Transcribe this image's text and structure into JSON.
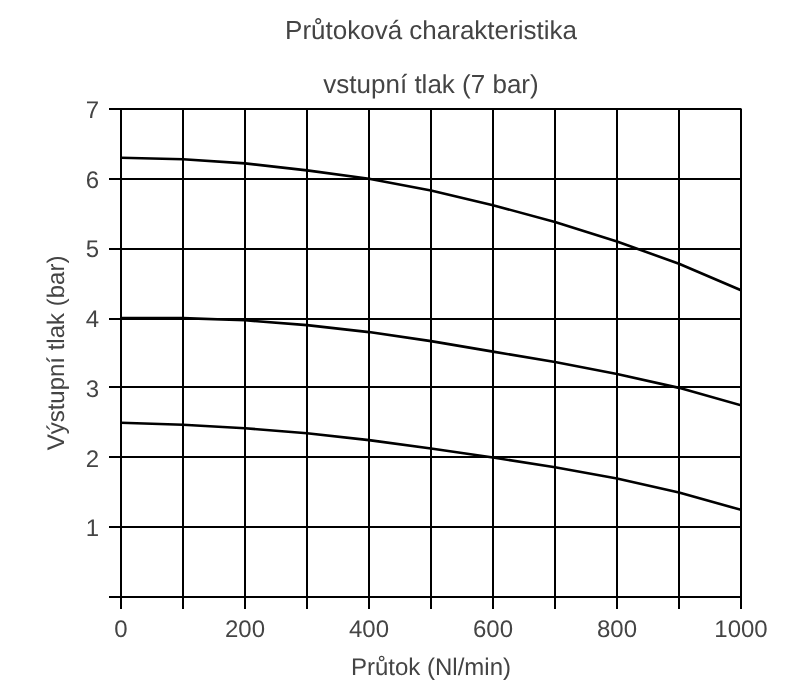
{
  "chart_data": {
    "type": "line",
    "title": "Průtoková charakteristika",
    "subtitle": "vstupní tlak (7 bar)",
    "xlabel": "Průtok (Nl/min)",
    "ylabel": "Výstupní tlak (bar)",
    "x": [
      0,
      100,
      200,
      300,
      400,
      500,
      600,
      700,
      800,
      900,
      1000
    ],
    "series": [
      {
        "color": "#000000",
        "values": [
          6.3,
          6.28,
          6.22,
          6.12,
          6.0,
          5.83,
          5.62,
          5.38,
          5.1,
          4.78,
          4.4
        ]
      },
      {
        "color": "#000000",
        "values": [
          4.0,
          4.0,
          3.97,
          3.9,
          3.8,
          3.67,
          3.52,
          3.37,
          3.2,
          3.0,
          2.75
        ]
      },
      {
        "color": "#000000",
        "values": [
          2.5,
          2.47,
          2.42,
          2.35,
          2.25,
          2.13,
          2.0,
          1.86,
          1.7,
          1.5,
          1.25
        ]
      }
    ],
    "xlim": [
      0,
      1000
    ],
    "ylim": [
      0,
      7
    ],
    "xticks": [
      0,
      {
        "value": 100,
        "label": null
      },
      200,
      {
        "value": 300,
        "label": null
      },
      400,
      {
        "value": 500,
        "label": null
      },
      600,
      {
        "value": 700,
        "label": null
      },
      800,
      {
        "value": 900,
        "label": null
      },
      1000
    ],
    "yticks": [
      {
        "value": 0,
        "label": null
      },
      1,
      2,
      3,
      4,
      5,
      6,
      7
    ],
    "grid": true,
    "marker": "none",
    "line_style": "solid"
  }
}
